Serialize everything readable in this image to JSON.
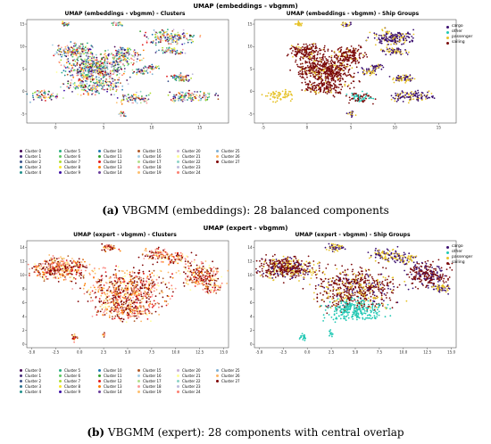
{
  "figure_a": {
    "suptitle": "UMAP (embeddings - vbgmm)",
    "caption_label": "(a)",
    "caption_text": " VBGMM (embeddings): 28 balanced components",
    "left_title": "UMAP (embeddings - vbgmm) - Clusters",
    "right_title": "UMAP (embeddings - vbgmm) - Ship Groups"
  },
  "figure_b": {
    "suptitle": "UMAP (expert - vbgmm)",
    "caption_label": "(b)",
    "caption_text": " VBGMM (expert): 28 components with central overlap",
    "left_title": "UMAP (expert - vbgmm) - Clusters",
    "right_title": "UMAP (expert - vbgmm) - Ship Groups"
  },
  "ship_groups": [
    "cargo",
    "other",
    "passenger",
    "sailing"
  ],
  "ship_group_colors": [
    "#3b0f70",
    "#21c8b4",
    "#e6c229",
    "#7a0a0a"
  ],
  "clusters": [
    "Cluster 0",
    "Cluster 1",
    "Cluster 2",
    "Cluster 3",
    "Cluster 4",
    "Cluster 5",
    "Cluster 6",
    "Cluster 7",
    "Cluster 8",
    "Cluster 9",
    "Cluster 10",
    "Cluster 11",
    "Cluster 12",
    "Cluster 13",
    "Cluster 14",
    "Cluster 15",
    "Cluster 16",
    "Cluster 17",
    "Cluster 18",
    "Cluster 19",
    "Cluster 20",
    "Cluster 21",
    "Cluster 22",
    "Cluster 23",
    "Cluster 24",
    "Cluster 25",
    "Cluster 26",
    "Cluster 27"
  ],
  "cluster_colors": [
    "#440154",
    "#472d7b",
    "#3b528b",
    "#2c728e",
    "#21918c",
    "#28ae80",
    "#5ec962",
    "#addc30",
    "#fde725",
    "#3a0ca3",
    "#1f78b4",
    "#33a02c",
    "#e31a1c",
    "#ff7f00",
    "#6a3d9a",
    "#b15928",
    "#a6cee3",
    "#b2df8a",
    "#fb9a99",
    "#fdbf6f",
    "#cab2d6",
    "#ffff99",
    "#8dd3c7",
    "#bebada",
    "#fb8072",
    "#80b1d3",
    "#fdb462",
    "#7f0000"
  ],
  "chart_data": [
    {
      "type": "scatter",
      "title": "UMAP (embeddings - vbgmm) - Clusters",
      "color_by": "cluster",
      "xticks": [
        "0",
        "5",
        "10",
        "15"
      ],
      "yticks": [
        "15",
        "10",
        "5",
        "0",
        "-5"
      ],
      "xlim": [
        -3,
        18
      ],
      "ylim": [
        -7,
        16
      ]
    },
    {
      "type": "scatter",
      "title": "UMAP (embeddings - vbgmm) - Ship Groups",
      "color_by": "ship_group",
      "xticks": [
        "-5",
        "0",
        "5",
        "10",
        "15"
      ],
      "yticks": [
        "15",
        "10",
        "5",
        "0",
        "-5"
      ],
      "xlim": [
        -6,
        17
      ],
      "ylim": [
        -7,
        16
      ]
    },
    {
      "type": "scatter",
      "title": "UMAP (expert - vbgmm) - Clusters",
      "color_by": "cluster",
      "xticks": [
        "-5.0",
        "-2.5",
        "0.0",
        "2.5",
        "5.0",
        "7.5",
        "10.0",
        "12.5",
        "15.0"
      ],
      "yticks": [
        "14",
        "12",
        "10",
        "8",
        "6",
        "4",
        "2",
        "0"
      ],
      "xlim": [
        -5.5,
        15.5
      ],
      "ylim": [
        -0.5,
        15
      ]
    },
    {
      "type": "scatter",
      "title": "UMAP (expert - vbgmm) - Ship Groups",
      "color_by": "ship_group",
      "xticks": [
        "-5.0",
        "-2.5",
        "0.0",
        "2.5",
        "5.0",
        "7.5",
        "10.0",
        "12.5",
        "15.0"
      ],
      "yticks": [
        "14",
        "12",
        "10",
        "8",
        "6",
        "4",
        "2",
        "0"
      ],
      "xlim": [
        -5.5,
        15.5
      ],
      "ylim": [
        -0.5,
        15
      ]
    }
  ]
}
